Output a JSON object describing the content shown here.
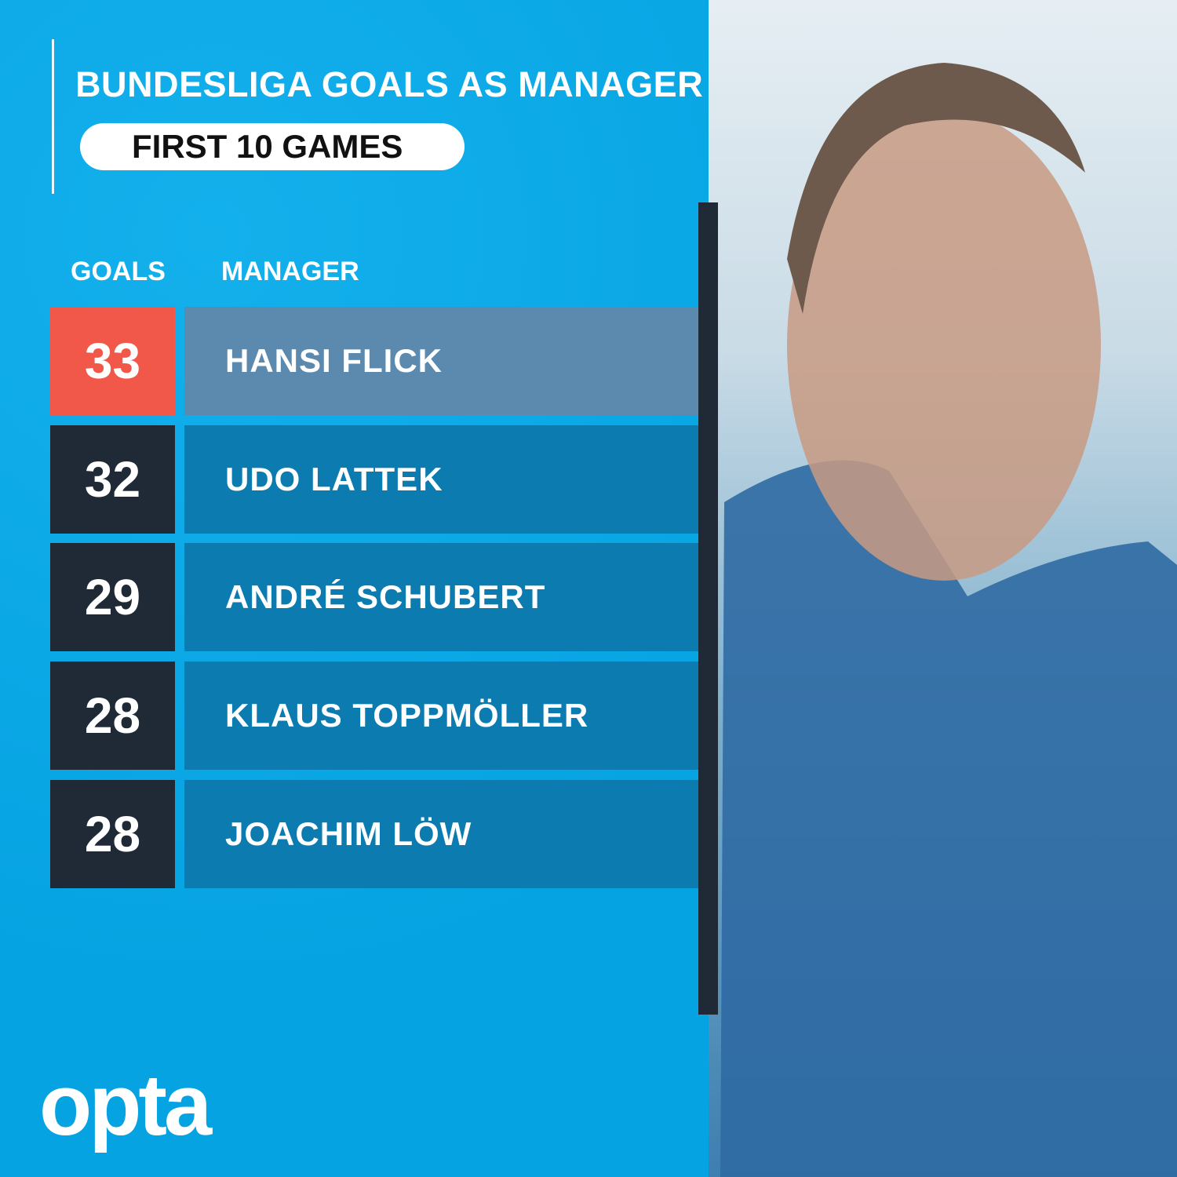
{
  "chart_data": {
    "type": "table",
    "title": "BUNDESLIGA GOALS AS MANAGER",
    "subtitle": "FIRST 10 GAMES",
    "columns": [
      "GOALS",
      "MANAGER"
    ],
    "rows": [
      {
        "goals": "33",
        "manager": "HANSI FLICK",
        "highlight": true
      },
      {
        "goals": "32",
        "manager": "UDO LATTEK"
      },
      {
        "goals": "29",
        "manager": "ANDRÉ SCHUBERT"
      },
      {
        "goals": "28",
        "manager": "KLAUS TOPPMÖLLER"
      },
      {
        "goals": "28",
        "manager": "JOACHIM LÖW"
      }
    ],
    "colors": {
      "background": "#0aa9e6",
      "highlight_goal": "#f2584a",
      "highlight_name": "#5c89ae",
      "goal_box": "#1f2a36",
      "name_box": "#0b7bb0"
    }
  },
  "brand": {
    "logo": "opta"
  },
  "photo": {
    "caption_visible": "",
    "icon": "manager-photo"
  }
}
